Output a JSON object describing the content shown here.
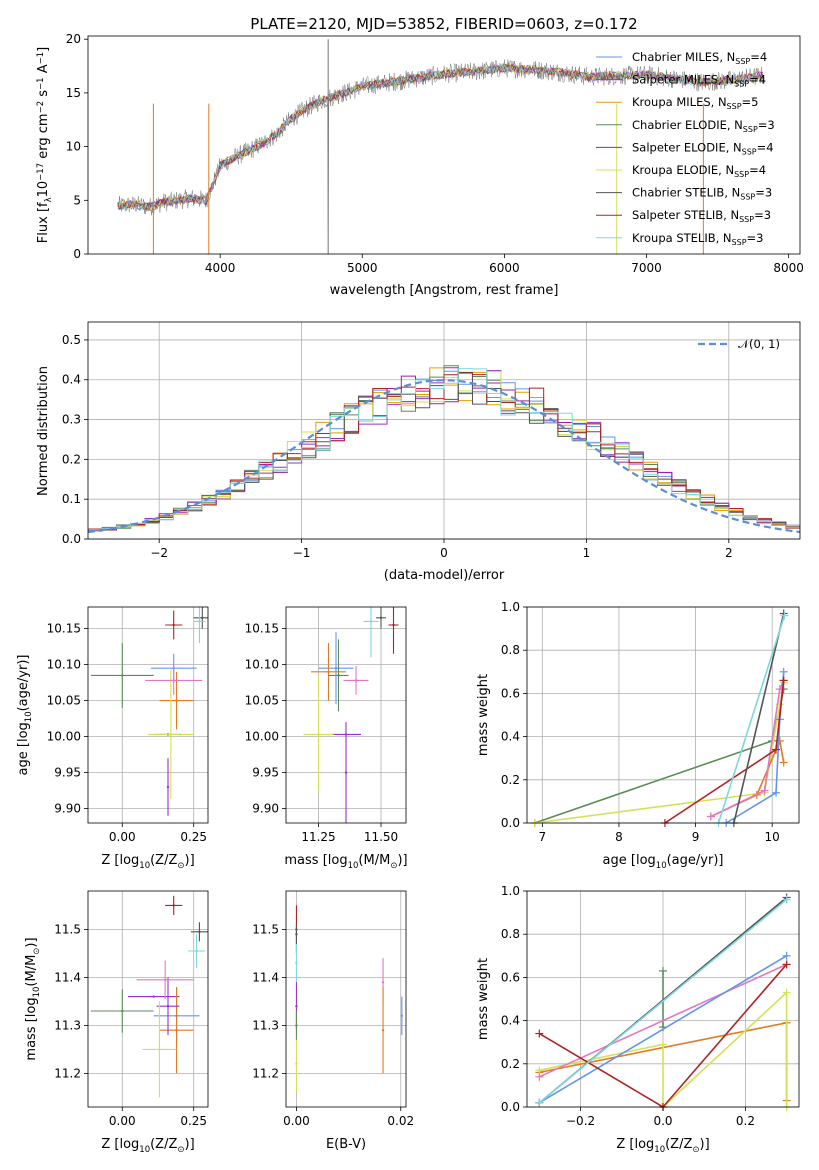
{
  "colors": {
    "chabrier_miles": "#6495ed",
    "salpeter_miles": "#9932cc",
    "kroupa_miles": "#e69f00",
    "chabrier_elodie": "#5b8c5a",
    "salpeter_elodie": "#a020a0",
    "kroupa_elodie": "#d4e157",
    "chabrier_stelib": "#555555",
    "salpeter_stelib": "#b22222",
    "kroupa_stelib": "#7fd7e0",
    "orange": "#e07b20",
    "pink": "#e377c2",
    "normal": "#5a8fd8"
  },
  "models": [
    {
      "id": "chabrier_miles",
      "label_pre": "Chabrier MILES, N",
      "sub": "SSP",
      "label_post": "=4",
      "color": "#6495ed"
    },
    {
      "id": "salpeter_miles",
      "label_pre": "Salpeter MILES, N",
      "sub": "SSP",
      "label_post": "=4",
      "color": "#9932cc"
    },
    {
      "id": "kroupa_miles",
      "label_pre": "Kroupa MILES, N",
      "sub": "SSP",
      "label_post": "=5",
      "color": "#e69f00"
    },
    {
      "id": "chabrier_elodie",
      "label_pre": "Chabrier ELODIE, N",
      "sub": "SSP",
      "label_post": "=3",
      "color": "#5b8c5a"
    },
    {
      "id": "salpeter_elodie",
      "label_pre": "Salpeter ELODIE, N",
      "sub": "SSP",
      "label_post": "=4",
      "color": "#a020a0"
    },
    {
      "id": "kroupa_elodie",
      "label_pre": "Kroupa ELODIE, N",
      "sub": "SSP",
      "label_post": "=4",
      "color": "#d4e157"
    },
    {
      "id": "chabrier_stelib",
      "label_pre": "Chabrier STELIB, N",
      "sub": "SSP",
      "label_post": "=3",
      "color": "#555555"
    },
    {
      "id": "salpeter_stelib",
      "label_pre": "Salpeter STELIB, N",
      "sub": "SSP",
      "label_post": "=3",
      "color": "#b22222"
    },
    {
      "id": "kroupa_stelib",
      "label_pre": "Kroupa STELIB, N",
      "sub": "SSP",
      "label_post": "=3",
      "color": "#7fd7e0"
    }
  ],
  "chart_data": [
    {
      "panel": "spectrum",
      "type": "line",
      "title": "PLATE=2120, MJD=53852, FIBERID=0603, z=0.172",
      "xlabel": "wavelength [Angstrom, rest frame]",
      "ylabel": "Flux [f",
      "ylabel_parts": {
        "a": "Flux [f",
        "a_sub": "λ",
        "b": "10",
        "b_sup": "−17",
        "c": " erg cm",
        "c_sup": "−2",
        "d": " s",
        "d_sup": "−1",
        "e": " A",
        "e_sup": "−1",
        "f": "]"
      },
      "xlim": [
        3070,
        8080
      ],
      "ylim": [
        0,
        20.3
      ],
      "xticks": [
        "4000",
        "5000",
        "6000",
        "7000",
        "8000"
      ],
      "xtick_values": [
        4000,
        5000,
        6000,
        7000,
        8000
      ],
      "yticks": [
        "0",
        "5",
        "10",
        "15",
        "20"
      ],
      "ytick_values": [
        0,
        5,
        10,
        15,
        20
      ],
      "continuum": {
        "x": [
          3280,
          3400,
          3500,
          3600,
          3700,
          3800,
          3900,
          3950,
          4000,
          4100,
          4200,
          4300,
          4400,
          4500,
          4600,
          4700,
          4800,
          4900,
          5000,
          5200,
          5400,
          5600,
          5800,
          6000,
          6200,
          6400,
          6600,
          6800,
          7000,
          7200,
          7400,
          7600,
          7800
        ],
        "y": [
          4.5,
          4.6,
          4.4,
          4.8,
          5.0,
          5.2,
          5.0,
          6.5,
          8.2,
          9.0,
          9.6,
          10.3,
          11.2,
          12.6,
          13.5,
          14.2,
          14.7,
          15.1,
          15.6,
          16.0,
          16.4,
          16.8,
          17.0,
          17.3,
          17.2,
          16.9,
          16.5,
          16.6,
          16.7,
          16.3,
          16.0,
          16.2,
          16.6
        ]
      },
      "series_note": "9 model spectra overlaid on data"
    },
    {
      "panel": "residuals",
      "type": "histogram",
      "xlabel": "(data-model)/error",
      "ylabel": "Normed distribution",
      "xlim": [
        -2.5,
        2.5
      ],
      "ylim": [
        0,
        0.545
      ],
      "xticks": [
        "−2",
        "−1",
        "0",
        "1",
        "2"
      ],
      "xtick_values": [
        -2,
        -1,
        0,
        1,
        2
      ],
      "yticks": [
        "0.0",
        "0.1",
        "0.2",
        "0.3",
        "0.4",
        "0.5"
      ],
      "ytick_values": [
        0,
        0.1,
        0.2,
        0.3,
        0.4,
        0.5
      ],
      "legend": "𝒩(0, 1)",
      "bin_width": 0.1,
      "centers": [
        -2.45,
        -2.35,
        -2.25,
        -2.15,
        -2.05,
        -1.95,
        -1.85,
        -1.75,
        -1.65,
        -1.55,
        -1.45,
        -1.35,
        -1.25,
        -1.15,
        -1.05,
        -0.95,
        -0.85,
        -0.75,
        -0.65,
        -0.55,
        -0.45,
        -0.35,
        -0.25,
        -0.15,
        -0.05,
        0.05,
        0.15,
        0.25,
        0.35,
        0.45,
        0.55,
        0.65,
        0.75,
        0.85,
        0.95,
        1.05,
        1.15,
        1.25,
        1.35,
        1.45,
        1.55,
        1.65,
        1.75,
        1.85,
        1.95,
        2.05,
        2.15,
        2.25,
        2.35,
        2.45
      ],
      "base": [
        0.022,
        0.026,
        0.031,
        0.038,
        0.046,
        0.056,
        0.068,
        0.082,
        0.097,
        0.114,
        0.132,
        0.152,
        0.172,
        0.194,
        0.215,
        0.237,
        0.258,
        0.279,
        0.298,
        0.316,
        0.333,
        0.348,
        0.361,
        0.372,
        0.38,
        0.385,
        0.388,
        0.38,
        0.372,
        0.361,
        0.348,
        0.333,
        0.316,
        0.298,
        0.279,
        0.258,
        0.237,
        0.215,
        0.194,
        0.172,
        0.152,
        0.132,
        0.114,
        0.097,
        0.082,
        0.068,
        0.056,
        0.046,
        0.038,
        0.031
      ]
    },
    {
      "panel": "age_vs_Z",
      "type": "scatter",
      "xlabel": "Z [log",
      "xlabel_parts": {
        "a": "Z [log",
        "a_sub": "10",
        "b": "(Z/Z",
        "b_sub": "⊙",
        "c": ")]"
      },
      "ylabel_parts": {
        "a": "age  [log",
        "a_sub": "10",
        "b": "(age/yr)]"
      },
      "xlim": [
        -0.12,
        0.3
      ],
      "ylim": [
        9.88,
        10.18
      ],
      "xticks": [
        "0.00",
        "0.25"
      ],
      "xtick_values": [
        0.0,
        0.25
      ],
      "yticks": [
        "9.90",
        "9.95",
        "10.00",
        "10.05",
        "10.10",
        "10.15"
      ],
      "ytick_values": [
        9.9,
        9.95,
        10.0,
        10.05,
        10.1,
        10.15
      ],
      "points": [
        {
          "x": 0.18,
          "y": 10.095,
          "ex": 0.08,
          "ey": 0.02,
          "c": "#6495ed"
        },
        {
          "x": 0.16,
          "y": 9.93,
          "ex": 0.0,
          "ey": 0.04,
          "c": "#9932cc"
        },
        {
          "x": 0.19,
          "y": 10.05,
          "ex": 0.06,
          "ey": 0.04,
          "c": "#e07b20"
        },
        {
          "x": 0.0,
          "y": 10.085,
          "ex": 0.11,
          "ey": 0.045,
          "c": "#5b8c5a"
        },
        {
          "x": 0.16,
          "y": 10.003,
          "ex": 0.05,
          "ey": 0.0,
          "c": "#9932cc"
        },
        {
          "x": 0.17,
          "y": 10.003,
          "ex": 0.08,
          "ey": 0.09,
          "c": "#d4e157"
        },
        {
          "x": 0.28,
          "y": 10.165,
          "ex": 0.03,
          "ey": 0.015,
          "c": "#555555"
        },
        {
          "x": 0.18,
          "y": 10.155,
          "ex": 0.03,
          "ey": 0.02,
          "c": "#b22222"
        },
        {
          "x": 0.27,
          "y": 10.16,
          "ex": 0.02,
          "ey": 0.03,
          "c": "#7fd7e0"
        },
        {
          "x": 0.18,
          "y": 10.078,
          "ex": 0.1,
          "ey": 0.02,
          "c": "#e377c2"
        }
      ]
    },
    {
      "panel": "age_vs_mass",
      "type": "scatter",
      "xlabel_parts": {
        "a": "mass [log",
        "a_sub": "10",
        "b": "(M/M",
        "b_sub": "⊙",
        "c": ")]"
      },
      "xlim": [
        11.12,
        11.6
      ],
      "ylim": [
        9.88,
        10.18
      ],
      "xticks": [
        "11.25",
        "11.50"
      ],
      "xtick_values": [
        11.25,
        11.5
      ],
      "yticks": [
        "9.90",
        "9.95",
        "10.00",
        "10.05",
        "10.10",
        "10.15"
      ],
      "ytick_values": [
        9.9,
        9.95,
        10.0,
        10.05,
        10.1,
        10.15
      ],
      "points": [
        {
          "x": 11.32,
          "y": 10.095,
          "ex": 0.07,
          "ey": 0.05,
          "c": "#6495ed"
        },
        {
          "x": 11.36,
          "y": 9.95,
          "ex": 0.0,
          "ey": 0.07,
          "c": "#9932cc"
        },
        {
          "x": 11.29,
          "y": 10.09,
          "ex": 0.07,
          "ey": 0.04,
          "c": "#e07b20"
        },
        {
          "x": 11.33,
          "y": 10.085,
          "ex": 0.04,
          "ey": 0.05,
          "c": "#5b8c5a"
        },
        {
          "x": 11.36,
          "y": 10.003,
          "ex": 0.06,
          "ey": 0.0,
          "c": "#9932cc"
        },
        {
          "x": 11.25,
          "y": 10.003,
          "ex": 0.06,
          "ey": 0.08,
          "c": "#d4e157"
        },
        {
          "x": 11.5,
          "y": 10.165,
          "ex": 0.02,
          "ey": 0.015,
          "c": "#555555"
        },
        {
          "x": 11.55,
          "y": 10.155,
          "ex": 0.02,
          "ey": 0.04,
          "c": "#b22222"
        },
        {
          "x": 11.46,
          "y": 10.16,
          "ex": 0.03,
          "ey": 0.05,
          "c": "#7fd7e0"
        },
        {
          "x": 11.4,
          "y": 10.078,
          "ex": 0.05,
          "ey": 0.02,
          "c": "#e377c2"
        }
      ]
    },
    {
      "panel": "weight_vs_age",
      "type": "line",
      "xlabel_parts": {
        "a": "age  [log",
        "a_sub": "10",
        "b": "(age/yr)]"
      },
      "ylabel": "mass weight",
      "xlim": [
        6.8,
        10.35
      ],
      "ylim": [
        0,
        1.0
      ],
      "xticks": [
        "7",
        "8",
        "9",
        "10"
      ],
      "xtick_values": [
        7,
        8,
        9,
        10
      ],
      "yticks": [
        "0.0",
        "0.2",
        "0.4",
        "0.6",
        "0.8",
        "1.0"
      ],
      "ytick_values": [
        0,
        0.2,
        0.4,
        0.6,
        0.8,
        1.0
      ],
      "series": [
        {
          "c": "#5b8c5a",
          "x": [
            6.9,
            10.0,
            10.15
          ],
          "y": [
            0.0,
            0.38,
            0.62
          ]
        },
        {
          "c": "#d4e157",
          "x": [
            6.9,
            9.9,
            10.1,
            10.15
          ],
          "y": [
            0.0,
            0.14,
            0.55,
            0.65
          ]
        },
        {
          "c": "#e07b20",
          "x": [
            9.2,
            9.8,
            10.1,
            10.15
          ],
          "y": [
            0.03,
            0.13,
            0.38,
            0.28
          ]
        },
        {
          "c": "#e377c2",
          "x": [
            9.2,
            9.9,
            10.1,
            10.15
          ],
          "y": [
            0.03,
            0.15,
            0.62,
            0.66
          ]
        },
        {
          "c": "#6495ed",
          "x": [
            9.4,
            10.05,
            10.1,
            10.15
          ],
          "y": [
            0.0,
            0.14,
            0.48,
            0.7
          ]
        },
        {
          "c": "#b22222",
          "x": [
            8.6,
            10.05,
            10.15
          ],
          "y": [
            0.0,
            0.34,
            0.66
          ]
        },
        {
          "c": "#555555",
          "x": [
            9.5,
            10.15
          ],
          "y": [
            0.0,
            0.97
          ]
        },
        {
          "c": "#7fd7e0",
          "x": [
            9.3,
            10.16
          ],
          "y": [
            0.0,
            0.96
          ]
        }
      ]
    },
    {
      "panel": "mass_vs_Z",
      "type": "scatter",
      "xlabel_parts": {
        "a": "Z [log",
        "a_sub": "10",
        "b": "(Z/Z",
        "b_sub": "⊙",
        "c": ")]"
      },
      "ylabel_parts": {
        "a": "mass [log",
        "a_sub": "10",
        "b": "(M/M",
        "b_sub": "⊙",
        "c": ")]"
      },
      "xlim": [
        -0.12,
        0.3
      ],
      "ylim": [
        11.13,
        11.58
      ],
      "xticks": [
        "0.00",
        "0.25"
      ],
      "xtick_values": [
        0.0,
        0.25
      ],
      "yticks": [
        "11.2",
        "11.3",
        "11.4",
        "11.5"
      ],
      "ytick_values": [
        11.2,
        11.3,
        11.4,
        11.5
      ],
      "points": [
        {
          "x": 0.19,
          "y": 11.32,
          "ex": 0.08,
          "ey": 0.06,
          "c": "#6495ed"
        },
        {
          "x": 0.11,
          "y": 11.36,
          "ex": 0.09,
          "ey": 0.0,
          "c": "#9932cc"
        },
        {
          "x": 0.19,
          "y": 11.29,
          "ex": 0.06,
          "ey": 0.09,
          "c": "#e07b20"
        },
        {
          "x": 0.0,
          "y": 11.33,
          "ex": 0.11,
          "ey": 0.045,
          "c": "#5b8c5a"
        },
        {
          "x": 0.16,
          "y": 11.34,
          "ex": 0.04,
          "ey": 0.06,
          "c": "#9932cc"
        },
        {
          "x": 0.13,
          "y": 11.25,
          "ex": 0.06,
          "ey": 0.1,
          "c": "#d4e157"
        },
        {
          "x": 0.27,
          "y": 11.495,
          "ex": 0.03,
          "ey": 0.02,
          "c": "#555555"
        },
        {
          "x": 0.18,
          "y": 11.55,
          "ex": 0.03,
          "ey": 0.02,
          "c": "#b22222"
        },
        {
          "x": 0.26,
          "y": 11.455,
          "ex": 0.03,
          "ey": 0.035,
          "c": "#7fd7e0"
        },
        {
          "x": 0.15,
          "y": 11.395,
          "ex": 0.1,
          "ey": 0.04,
          "c": "#e377c2"
        }
      ]
    },
    {
      "panel": "mass_vs_ebv",
      "type": "scatter",
      "xlabel": "E(B-V)",
      "xlim": [
        -0.002,
        0.021
      ],
      "ylim": [
        11.13,
        11.58
      ],
      "xticks": [
        "0.00",
        "0.02"
      ],
      "xtick_values": [
        0.0,
        0.02
      ],
      "yticks": [
        "11.2",
        "11.3",
        "11.4",
        "11.5"
      ],
      "ytick_values": [
        11.2,
        11.3,
        11.4,
        11.5
      ],
      "points": [
        {
          "x": 0.0,
          "y": 11.5,
          "ex": 0.0,
          "ey": 0.05,
          "c": "#b22222"
        },
        {
          "x": 0.0,
          "y": 11.43,
          "ex": 0.0,
          "ey": 0.04,
          "c": "#7fd7e0"
        },
        {
          "x": 0.0,
          "y": 11.34,
          "ex": 0.0,
          "ey": 0.05,
          "c": "#9932cc"
        },
        {
          "x": 0.0,
          "y": 11.22,
          "ex": 0.0,
          "ey": 0.06,
          "c": "#d4e157"
        },
        {
          "x": 0.0,
          "y": 11.3,
          "ex": 0.0,
          "ey": 0.03,
          "c": "#5b8c5a"
        },
        {
          "x": 0.0,
          "y": 11.49,
          "ex": 0.0,
          "ey": 0.02,
          "c": "#555555"
        },
        {
          "x": 0.0166,
          "y": 11.39,
          "ex": 0.0,
          "ey": 0.05,
          "c": "#e377c2"
        },
        {
          "x": 0.0166,
          "y": 11.29,
          "ex": 0.0,
          "ey": 0.09,
          "c": "#e07b20"
        },
        {
          "x": 0.0202,
          "y": 11.32,
          "ex": 0.0,
          "ey": 0.04,
          "c": "#6495ed"
        }
      ]
    },
    {
      "panel": "weight_vs_Z",
      "type": "line",
      "xlabel_parts": {
        "a": "Z [log",
        "a_sub": "10",
        "b": "(Z/Z",
        "b_sub": "⊙",
        "c": ")]"
      },
      "ylabel": "mass weight",
      "xlim": [
        -0.33,
        0.33
      ],
      "ylim": [
        0,
        1.0
      ],
      "xticks": [
        "−0.2",
        "0.0",
        "0.2"
      ],
      "xtick_values": [
        -0.2,
        0.0,
        0.2
      ],
      "yticks": [
        "0.0",
        "0.2",
        "0.4",
        "0.6",
        "0.8",
        "1.0"
      ],
      "ytick_values": [
        0,
        0.2,
        0.4,
        0.6,
        0.8,
        1.0
      ],
      "series": [
        {
          "c": "#5b8c5a",
          "x": [
            0.0,
            0.0
          ],
          "y": [
            0.37,
            0.63
          ]
        },
        {
          "c": "#e07b20",
          "x": [
            -0.3,
            0.3,
            0.3
          ],
          "y": [
            0.16,
            0.39,
            0.03
          ]
        },
        {
          "c": "#d4e157",
          "x": [
            -0.3,
            0.0,
            0.0,
            0.3,
            0.3
          ],
          "y": [
            0.17,
            0.29,
            0.0,
            0.53,
            0.0
          ]
        },
        {
          "c": "#e377c2",
          "x": [
            -0.3,
            0.3
          ],
          "y": [
            0.14,
            0.66
          ]
        },
        {
          "c": "#6495ed",
          "x": [
            -0.3,
            0.3
          ],
          "y": [
            0.02,
            0.7
          ]
        },
        {
          "c": "#b22222",
          "x": [
            -0.3,
            0.0,
            0.3
          ],
          "y": [
            0.34,
            0.0,
            0.66
          ]
        },
        {
          "c": "#555555",
          "x": [
            -0.3,
            0.3
          ],
          "y": [
            0.02,
            0.97
          ]
        },
        {
          "c": "#7fd7e0",
          "x": [
            -0.3,
            0.3
          ],
          "y": [
            0.02,
            0.96
          ]
        }
      ]
    }
  ]
}
